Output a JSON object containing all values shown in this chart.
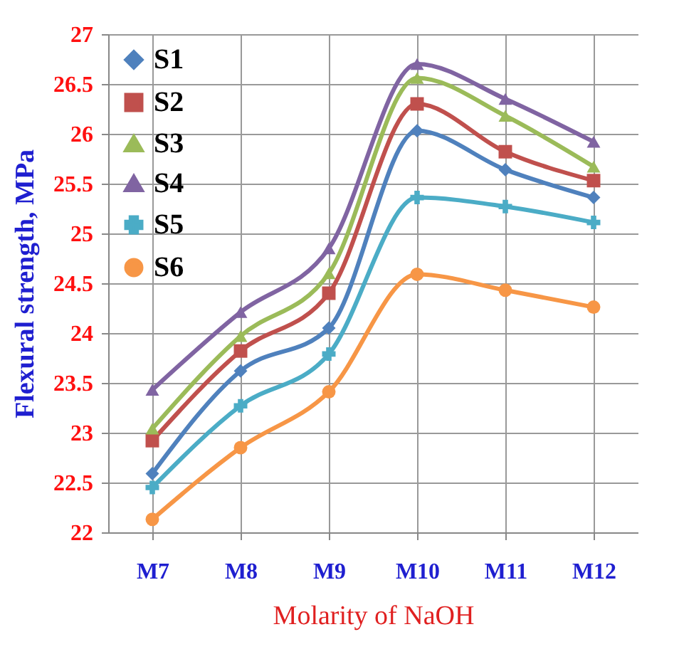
{
  "chart_data": {
    "type": "line",
    "xlabel": "Molarity of NaOH",
    "ylabel": "Flexural strength, MPa",
    "categories": [
      "M7",
      "M8",
      "M9",
      "M10",
      "M11",
      "M12"
    ],
    "series": [
      {
        "name": "S1",
        "color": "#4f81bd",
        "marker": "diamond",
        "values": [
          22.59,
          23.62,
          24.05,
          26.03,
          25.64,
          25.36
        ]
      },
      {
        "name": "S2",
        "color": "#c0504d",
        "marker": "square",
        "values": [
          22.92,
          23.82,
          24.4,
          26.3,
          25.82,
          25.53
        ]
      },
      {
        "name": "S3",
        "color": "#9bbb59",
        "marker": "triangle",
        "values": [
          23.04,
          23.97,
          24.6,
          26.56,
          26.18,
          25.67
        ]
      },
      {
        "name": "S4",
        "color": "#8064a2",
        "marker": "triangle",
        "values": [
          23.43,
          24.21,
          24.85,
          26.7,
          26.35,
          25.92
        ]
      },
      {
        "name": "S5",
        "color": "#4bacc6",
        "marker": "cross",
        "values": [
          22.45,
          23.27,
          23.79,
          25.36,
          25.27,
          25.11
        ]
      },
      {
        "name": "S6",
        "color": "#f79646",
        "marker": "circle",
        "values": [
          22.13,
          22.85,
          23.41,
          24.59,
          24.43,
          24.26
        ]
      }
    ],
    "ylim": [
      22,
      27
    ],
    "yticks": [
      22,
      22.5,
      23,
      23.5,
      24,
      24.5,
      25,
      25.5,
      26,
      26.5,
      27
    ],
    "grid": true,
    "legend": "top left"
  }
}
